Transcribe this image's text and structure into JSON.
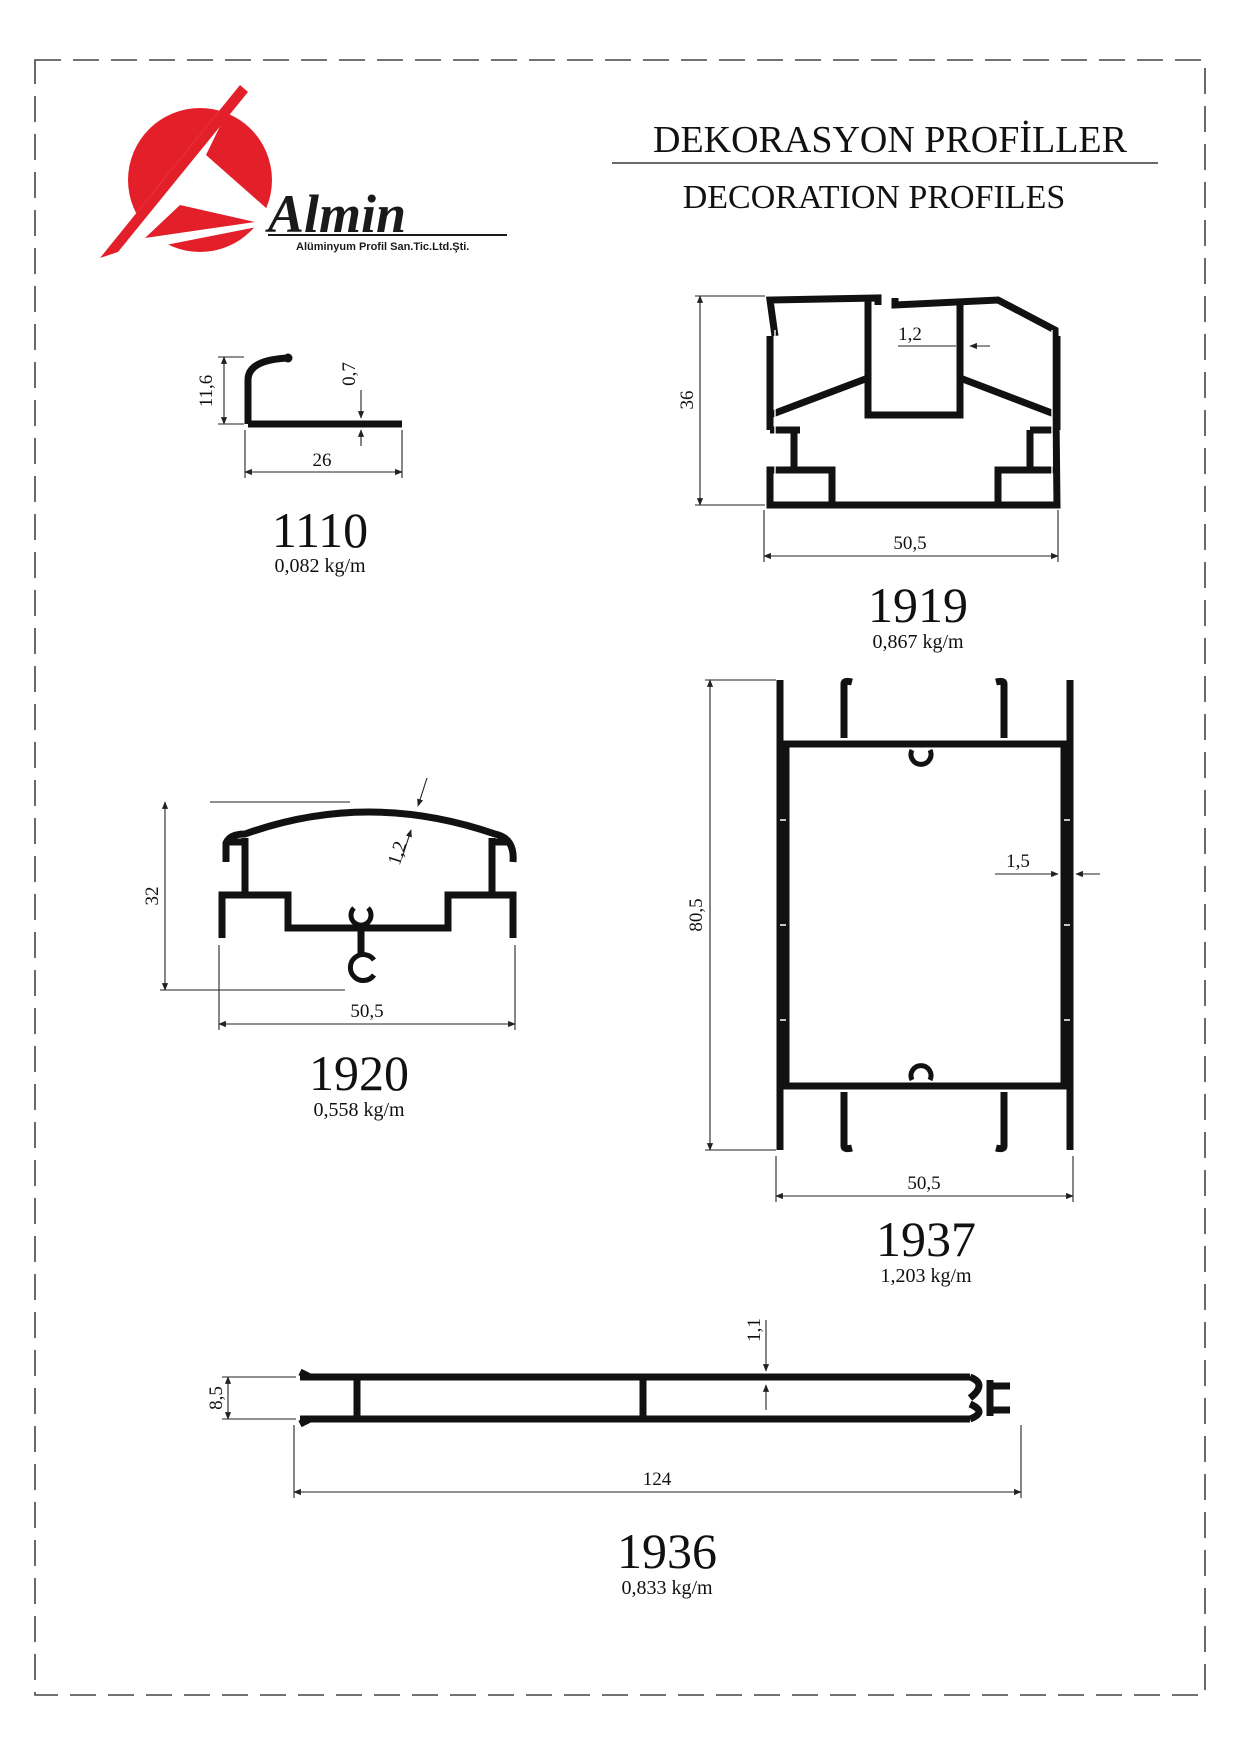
{
  "header": {
    "title_tr": "DEKORASYON PROFİLLER",
    "title_en": "DECORATION PROFILES"
  },
  "logo": {
    "brand": "Almin",
    "subtitle": "Alüminyum Profil San.Tic.Ltd.Şti.",
    "accent_color": "#e3202a"
  },
  "profiles": [
    {
      "code": "1110",
      "weight": "0,082 kg/m",
      "dims": {
        "height": "11,6",
        "thickness": "0,7",
        "width": "26"
      }
    },
    {
      "code": "1919",
      "weight": "0,867 kg/m",
      "dims": {
        "height": "36",
        "thickness": "1,2",
        "width": "50,5"
      }
    },
    {
      "code": "1920",
      "weight": "0,558 kg/m",
      "dims": {
        "height": "32",
        "thickness": "1,2",
        "width": "50,5"
      }
    },
    {
      "code": "1937",
      "weight": "1,203 kg/m",
      "dims": {
        "height": "80,5",
        "thickness": "1,5",
        "width": "50,5"
      }
    },
    {
      "code": "1936",
      "weight": "0,833 kg/m",
      "dims": {
        "height": "8,5",
        "thickness": "1,1",
        "width": "124"
      }
    }
  ]
}
